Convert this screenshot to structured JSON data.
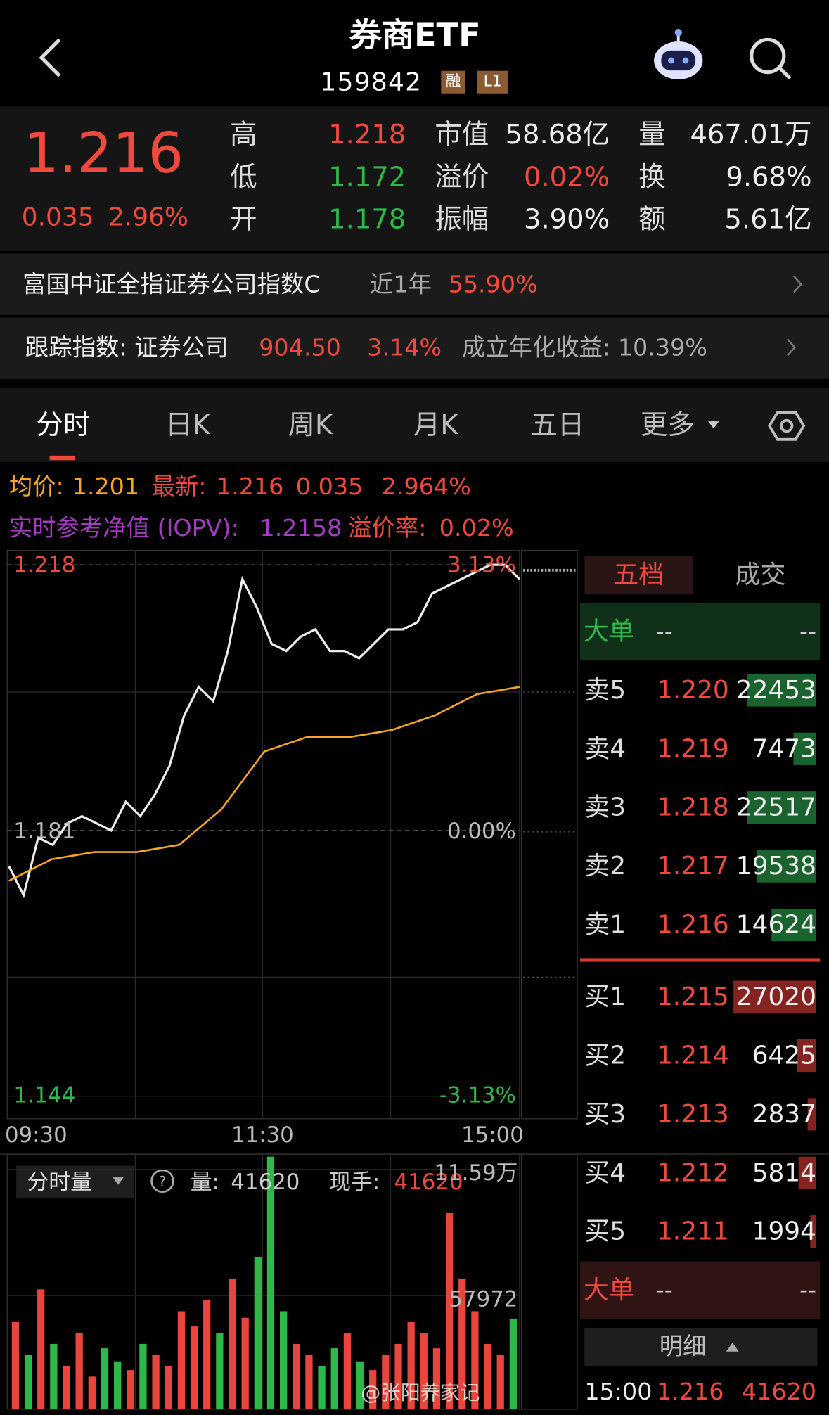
{
  "header": {
    "title": "券商ETF",
    "code": "159842",
    "badges": [
      "融",
      "L1"
    ]
  },
  "quote": {
    "price": "1.216",
    "change": "0.035",
    "change_pct": "2.96%",
    "stats": [
      {
        "label": "高",
        "value": "1.218"
      },
      {
        "label": "低",
        "value": "1.172"
      },
      {
        "label": "开",
        "value": "1.178"
      },
      {
        "label": "市值",
        "value": "58.68亿"
      },
      {
        "label": "溢价",
        "value": "0.02%"
      },
      {
        "label": "振幅",
        "value": "3.90%"
      },
      {
        "label": "量",
        "value": "467.01万"
      },
      {
        "label": "换",
        "value": "9.68%"
      },
      {
        "label": "额",
        "value": "5.61亿"
      }
    ]
  },
  "fund_row": {
    "name": "富国中证全指证券公司指数C",
    "period": "近1年",
    "return": "55.90%"
  },
  "index_row": {
    "label": "跟踪指数: 证券公司",
    "points": "904.50",
    "change": "3.14%",
    "annual": "成立年化收益: 10.39%"
  },
  "tabs": [
    "分时",
    "日K",
    "周K",
    "月K",
    "五日",
    "更多"
  ],
  "info_line_1": {
    "avg_label": "均价:",
    "avg": "1.201",
    "last_label": "最新:",
    "last": "1.216",
    "change": "0.035",
    "change_pct": "2.964%"
  },
  "info_line_2": {
    "iopv_label": "实时参考净值 (IOPV):",
    "iopv": "1.2158",
    "premium_label": "溢价率:",
    "premium": "0.02%"
  },
  "price_chart": {
    "type": "line",
    "ylim": [
      1.144,
      1.218
    ],
    "yticks": [
      1.218,
      1.181,
      1.144
    ],
    "pct_labels": [
      "3.13%",
      "0.00%",
      "-3.13%"
    ],
    "x_labels": [
      "09:30",
      "11:30",
      "15:00"
    ],
    "series": [
      {
        "color": "#ececec",
        "values": [
          1.176,
          1.172,
          1.18,
          1.179,
          1.182,
          1.183,
          1.182,
          1.181,
          1.185,
          1.183,
          1.186,
          1.19,
          1.197,
          1.201,
          1.199,
          1.206,
          1.216,
          1.212,
          1.207,
          1.206,
          1.208,
          1.209,
          1.206,
          1.206,
          1.205,
          1.207,
          1.209,
          1.209,
          1.21,
          1.214,
          1.215,
          1.216,
          1.217,
          1.218,
          1.218,
          1.216
        ]
      },
      {
        "color": "#f5a623",
        "values": [
          1.174,
          1.177,
          1.178,
          1.178,
          1.179,
          1.184,
          1.192,
          1.194,
          1.194,
          1.195,
          1.197,
          1.2,
          1.201
        ]
      }
    ]
  },
  "volume_chart": {
    "type": "bar",
    "selector": "分时量",
    "volume_label": "量:",
    "volume": "41620",
    "hand_label": "现手:",
    "hand": "41620",
    "ylim": [
      0,
      115900
    ],
    "yticks": [
      {
        "value": 115900,
        "label": "11.59万"
      },
      57972
    ],
    "values": [
      40000,
      25000,
      55000,
      30000,
      20000,
      35000,
      15000,
      28000,
      22000,
      18000,
      30000,
      25000,
      20000,
      45000,
      38000,
      50000,
      35000,
      60000,
      42000,
      70000,
      115900,
      45000,
      30000,
      25000,
      20000,
      28000,
      35000,
      22000,
      18000,
      25000,
      30000,
      40000,
      35000,
      28000,
      90000,
      60000,
      45000,
      30000,
      25000,
      41620
    ]
  },
  "order_book": {
    "tabs": [
      "五档",
      "成交"
    ],
    "big_top": {
      "label": "大单",
      "left": "--",
      "right": "--"
    },
    "asks": [
      {
        "label": "卖5",
        "price": "1.220",
        "volume": 22453
      },
      {
        "label": "卖4",
        "price": "1.219",
        "volume": 7473
      },
      {
        "label": "卖3",
        "price": "1.218",
        "volume": 22517
      },
      {
        "label": "卖2",
        "price": "1.217",
        "volume": 19538
      },
      {
        "label": "卖1",
        "price": "1.216",
        "volume": 14624
      }
    ],
    "bids": [
      {
        "label": "买1",
        "price": "1.215",
        "volume": 27020
      },
      {
        "label": "买2",
        "price": "1.214",
        "volume": 6425
      },
      {
        "label": "买3",
        "price": "1.213",
        "volume": 2837
      },
      {
        "label": "买4",
        "price": "1.212",
        "volume": 5814
      },
      {
        "label": "买5",
        "price": "1.211",
        "volume": 1994
      }
    ],
    "big_bottom": {
      "label": "大单",
      "left": "--",
      "right": "--"
    },
    "detail": "明细",
    "last_trade": {
      "time": "15:00",
      "price": "1.216",
      "volume": "41620"
    }
  },
  "watermark": "@张阳养家记"
}
